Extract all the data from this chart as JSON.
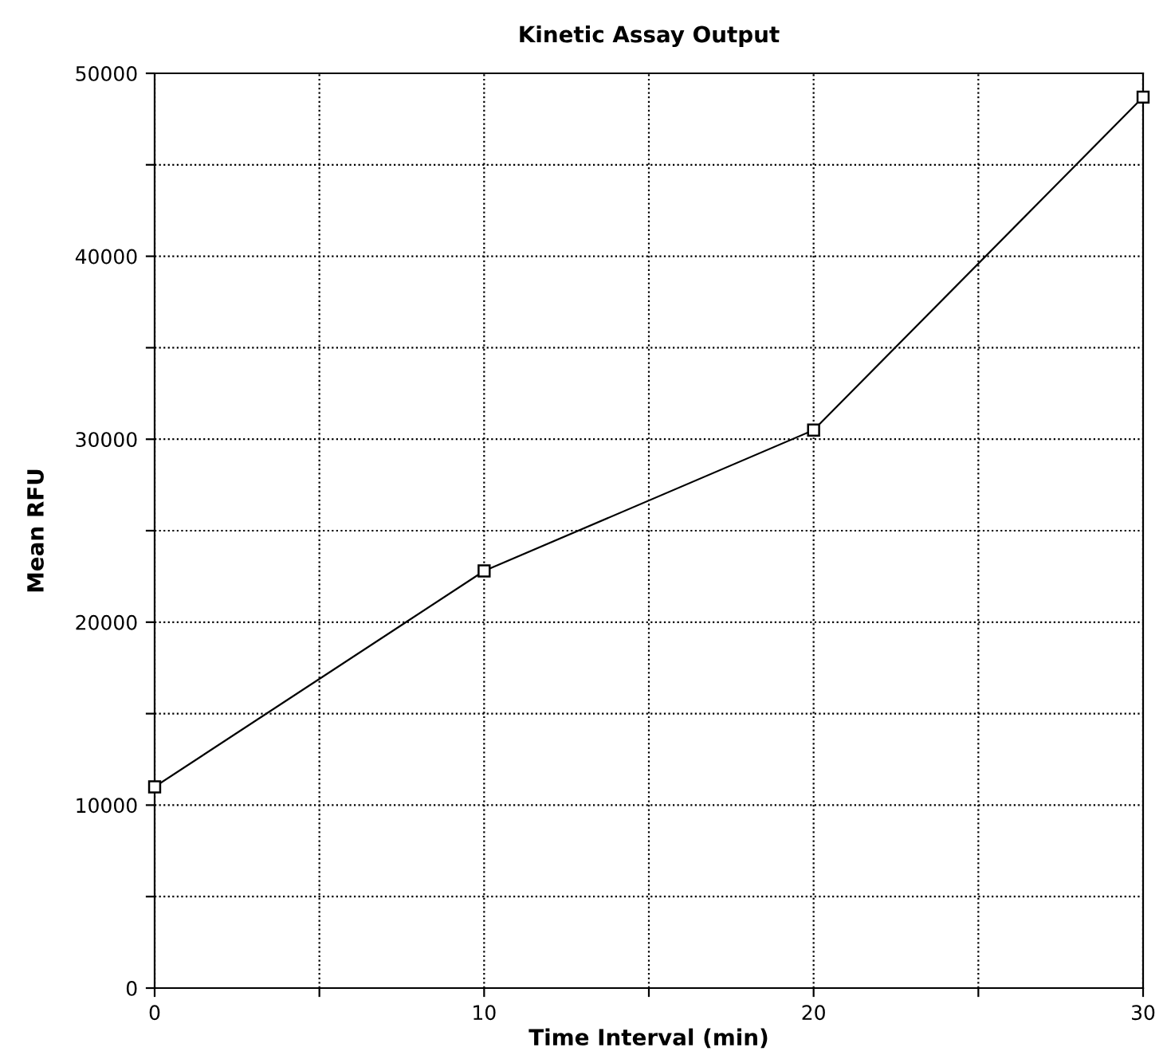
{
  "chart_data": {
    "type": "line",
    "title": "Kinetic Assay Output",
    "xlabel": "Time Interval (min)",
    "ylabel": "Mean RFU",
    "x": [
      0,
      10,
      20,
      30
    ],
    "series": [
      {
        "color": "#000000",
        "values": [
          11000,
          22800,
          30500,
          48700
        ]
      }
    ],
    "xlim": [
      0,
      30
    ],
    "ylim": [
      0,
      50000
    ],
    "xticks": [
      0,
      {
        "value": 5,
        "label": null
      },
      10,
      {
        "value": 15,
        "label": null
      },
      20,
      {
        "value": 25,
        "label": null
      },
      30
    ],
    "yticks": [
      0,
      {
        "value": 5000,
        "label": null
      },
      10000,
      {
        "value": 15000,
        "label": null
      },
      20000,
      {
        "value": 25000,
        "label": null
      },
      30000,
      {
        "value": 35000,
        "label": null
      },
      40000,
      {
        "value": 45000,
        "label": null
      },
      50000
    ],
    "grid": true,
    "marker": "square",
    "line_style": "solid"
  }
}
